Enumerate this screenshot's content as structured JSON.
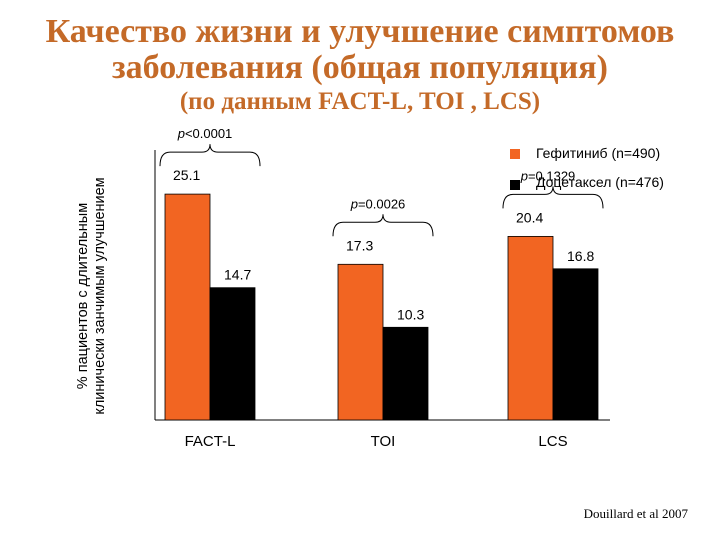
{
  "title": {
    "line1": "Качество жизни и улучшение симптомов",
    "line2": "заболевания (общая популяция)",
    "line3": "(по данным   FACT-L, TOI , LCS)"
  },
  "citation": "Douillard et al 2007",
  "colors": {
    "series1": "#f26522",
    "series2": "#000000",
    "title": "#c46a28",
    "axis": "#000000"
  },
  "chart_data": {
    "type": "bar",
    "categories": [
      "FACT-L",
      "TOI",
      "LCS"
    ],
    "series": [
      {
        "name": "Гефитиниб (n=490)",
        "values": [
          25.1,
          17.3,
          20.4
        ]
      },
      {
        "name": "Доцетаксел (n=476)",
        "values": [
          14.7,
          10.3,
          16.8
        ]
      }
    ],
    "ylabel_lines": [
      "% пациентов с длительным",
      "клинически занчимым улучшением"
    ],
    "ylim": [
      0,
      30
    ],
    "value_labels": [
      [
        "25.1",
        "14.7"
      ],
      [
        "17.3",
        "10.3"
      ],
      [
        "20.4",
        "16.8"
      ]
    ],
    "p_values": [
      "p<0.0001",
      "p=0.0026",
      "p=0.1329"
    ],
    "legend_position": "top-right",
    "grid": false
  }
}
